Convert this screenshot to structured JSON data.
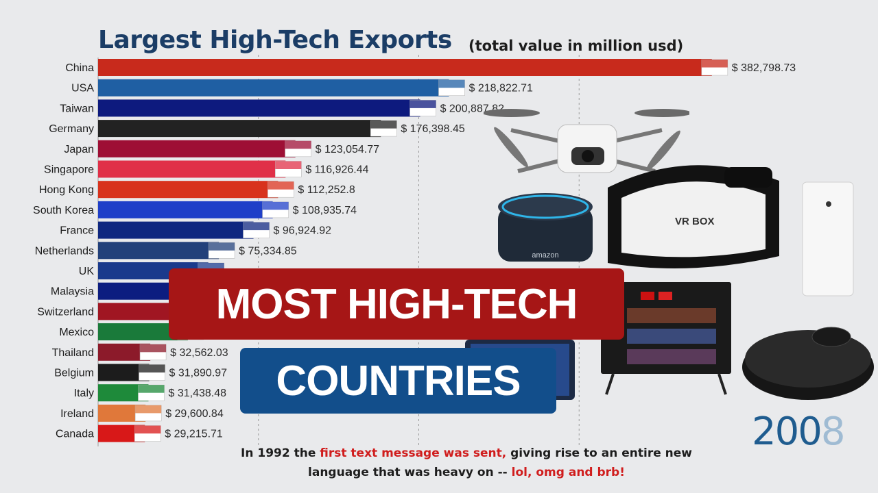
{
  "title": "Largest High-Tech Exports",
  "title_separator": "-",
  "subtitle": "(total value in million usd)",
  "year": "2008",
  "banner": {
    "line1": "MOST HIGH-TECH",
    "line2": "COUNTRIES"
  },
  "fact": {
    "part1": "In 1992 the ",
    "highlight1": "first text message was sent,",
    "part2": " giving rise to an entire new language that was heavy on -- ",
    "highlight2": "lol, omg and brb!"
  },
  "devices": {
    "vr_label": "VR BOX",
    "speaker_label": "amazon"
  },
  "colors": {
    "title": "#1b3d66",
    "banner_red": "#a61616",
    "banner_blue": "#124e8b",
    "year": "#1f5c8f",
    "highlight": "#d01d1d"
  },
  "chart_data": {
    "type": "bar",
    "orientation": "horizontal",
    "title": "Largest High-Tech Exports",
    "subtitle": "(total value in million usd)",
    "xlim": [
      0,
      400000
    ],
    "grid": true,
    "categories": [
      "China",
      "USA",
      "Taiwan",
      "Germany",
      "Japan",
      "Singapore",
      "Hong Kong",
      "South Korea",
      "France",
      "Netherlands",
      "UK",
      "Malaysia",
      "Switzerland",
      "Mexico",
      "Thailand",
      "Belgium",
      "Italy",
      "Ireland",
      "Canada"
    ],
    "values": [
      382798.73,
      218822.71,
      200887.82,
      176398.45,
      123054.77,
      116926.44,
      112252.8,
      108935.74,
      96924.92,
      75334.85,
      null,
      null,
      null,
      null,
      32562.03,
      31890.97,
      31438.48,
      29600.84,
      29215.71
    ],
    "value_labels": [
      "$ 382,798.73",
      "$ 218,822.71",
      "$ 200,887.82",
      "$ 176,398.45",
      "$ 123,054.77",
      "$ 116,926.44",
      "$ 112,252.8",
      "$ 108,935.74",
      "$ 96,924.92",
      "$ 75,334.85",
      "",
      "",
      "",
      "",
      "$ 32,562.03",
      "$ 31,890.97",
      "$ 31,438.48",
      "$ 29,600.84",
      "$ 29,215.71"
    ],
    "bar_colors": [
      "#c82a1c",
      "#1f5fa3",
      "#0d1a7e",
      "#222222",
      "#9e0f35",
      "#e03048",
      "#d8321c",
      "#1f3fc8",
      "#0f2780",
      "#22407a",
      "#1a3a8c",
      "#0c1d80",
      "#a01622",
      "#1a7a3a",
      "#8c1a2a",
      "#1c1c1c",
      "#1e8a3a",
      "#e0783a",
      "#d81818"
    ]
  }
}
